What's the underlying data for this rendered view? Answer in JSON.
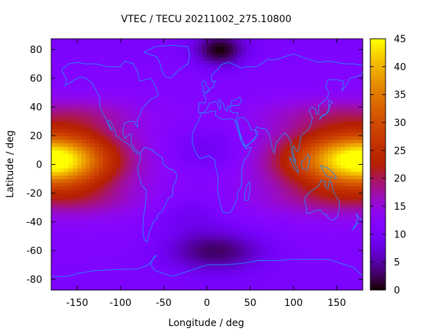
{
  "chart_data": {
    "type": "heatmap",
    "title": "VTEC / TECU 20211002_275.10800",
    "xlabel": "Longitude / deg",
    "ylabel": "Latitude / deg",
    "xlim": [
      -180,
      180
    ],
    "ylim": [
      -87.5,
      87.5
    ],
    "x_ticks": [
      -150,
      -100,
      -50,
      0,
      50,
      100,
      150
    ],
    "y_ticks": [
      -80,
      -60,
      -40,
      -20,
      0,
      20,
      40,
      60,
      80
    ],
    "colorbar": {
      "range": [
        0,
        45
      ],
      "ticks": [
        0,
        5,
        10,
        15,
        20,
        25,
        30,
        35,
        40,
        45
      ],
      "colormap": "gnuplot-hot (black-purple-red-yellow)"
    },
    "grid": {
      "lon_step_deg": 5,
      "lat_step_deg": 2.5
    },
    "coastline_color": "#1e90ff",
    "features": [
      {
        "name": "crest-pacific",
        "lon": -180,
        "lat": 3,
        "peak": 44,
        "lon_width": 45,
        "lat_width": 13
      },
      {
        "name": "crest-asia",
        "lon": 180,
        "lat": 3,
        "peak": 44,
        "lon_width": 55,
        "lat_width": 13
      },
      {
        "name": "trough-south-atlantic",
        "lon": 10,
        "lat": -60,
        "peak": 4,
        "lon_width": 40,
        "lat_width": 10
      },
      {
        "name": "trough-north-atlantic",
        "lon": 15,
        "lat": 80,
        "peak": 2,
        "lon_width": 20,
        "lat_width": 8
      }
    ]
  }
}
